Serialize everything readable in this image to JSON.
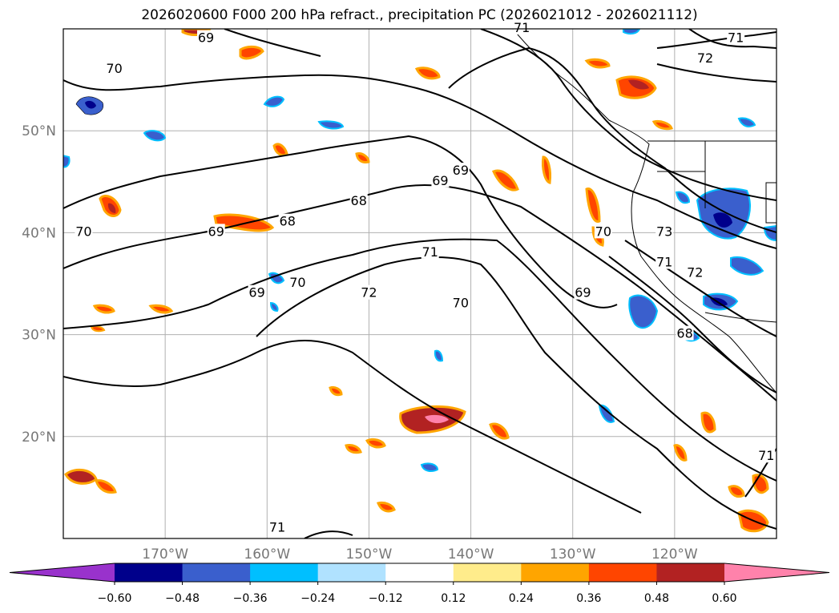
{
  "chart_data": {
    "type": "heatmap",
    "title": "2026020600 F000 200 hPa refract., precipitation PC (2026021012 - 2026021112)",
    "x_ticks": [
      "170°W",
      "160°W",
      "150°W",
      "140°W",
      "130°W",
      "120°W"
    ],
    "x_values": [
      -170,
      -160,
      -150,
      -140,
      -130,
      -120
    ],
    "y_ticks": [
      "50°N",
      "40°N",
      "30°N",
      "20°N"
    ],
    "y_values": [
      50,
      40,
      30,
      20
    ],
    "xlim": [
      -180,
      -110
    ],
    "ylim": [
      10,
      60
    ],
    "grid": true,
    "colorbar": {
      "orientation": "horizontal",
      "extend": "both",
      "boundaries": [
        -0.72,
        -0.6,
        -0.48,
        -0.36,
        -0.24,
        -0.12,
        0.12,
        0.24,
        0.36,
        0.48,
        0.6,
        0.72
      ],
      "colors": [
        "#9932cc",
        "#00008b",
        "#3a5fcd",
        "#00bfff",
        "#b0e2ff",
        "#ffffff",
        "#ffec8b",
        "#ffa500",
        "#ff4500",
        "#b22222",
        "#ff82ab"
      ],
      "tick_labels": [
        "−0.60",
        "−0.48",
        "−0.36",
        "−0.24",
        "−0.12",
        "0.12",
        "0.24",
        "0.36",
        "0.48",
        "0.60"
      ],
      "tick_values": [
        -0.6,
        -0.48,
        -0.36,
        -0.24,
        -0.12,
        0.12,
        0.24,
        0.36,
        0.48,
        0.6
      ]
    },
    "contour_labels": [
      {
        "text": "69",
        "lon": -165,
        "lat": 40
      },
      {
        "text": "68",
        "lon": -151,
        "lat": 43
      },
      {
        "text": "68",
        "lon": -158,
        "lat": 41
      },
      {
        "text": "69",
        "lon": -143,
        "lat": 45
      },
      {
        "text": "69",
        "lon": -141,
        "lat": 46
      },
      {
        "text": "70",
        "lon": -178,
        "lat": 40
      },
      {
        "text": "70",
        "lon": -175,
        "lat": 56
      },
      {
        "text": "69",
        "lon": -161,
        "lat": 34
      },
      {
        "text": "70",
        "lon": -157,
        "lat": 35
      },
      {
        "text": "72",
        "lon": -150,
        "lat": 34
      },
      {
        "text": "71",
        "lon": -144,
        "lat": 38
      },
      {
        "text": "70",
        "lon": -141,
        "lat": 33
      },
      {
        "text": "69",
        "lon": -129,
        "lat": 34
      },
      {
        "text": "70",
        "lon": -127,
        "lat": 40
      },
      {
        "text": "73",
        "lon": -121,
        "lat": 40
      },
      {
        "text": "71",
        "lon": -121,
        "lat": 37
      },
      {
        "text": "72",
        "lon": -118,
        "lat": 36
      },
      {
        "text": "68",
        "lon": -119,
        "lat": 30
      },
      {
        "text": "72",
        "lon": -117,
        "lat": 57
      },
      {
        "text": "71",
        "lon": -114,
        "lat": 59
      },
      {
        "text": "71",
        "lon": -135,
        "lat": 60
      },
      {
        "text": "69",
        "lon": -166,
        "lat": 59
      },
      {
        "text": "71",
        "lon": -159,
        "lat": 11
      },
      {
        "text": "71",
        "lon": -111,
        "lat": 18
      }
    ]
  }
}
